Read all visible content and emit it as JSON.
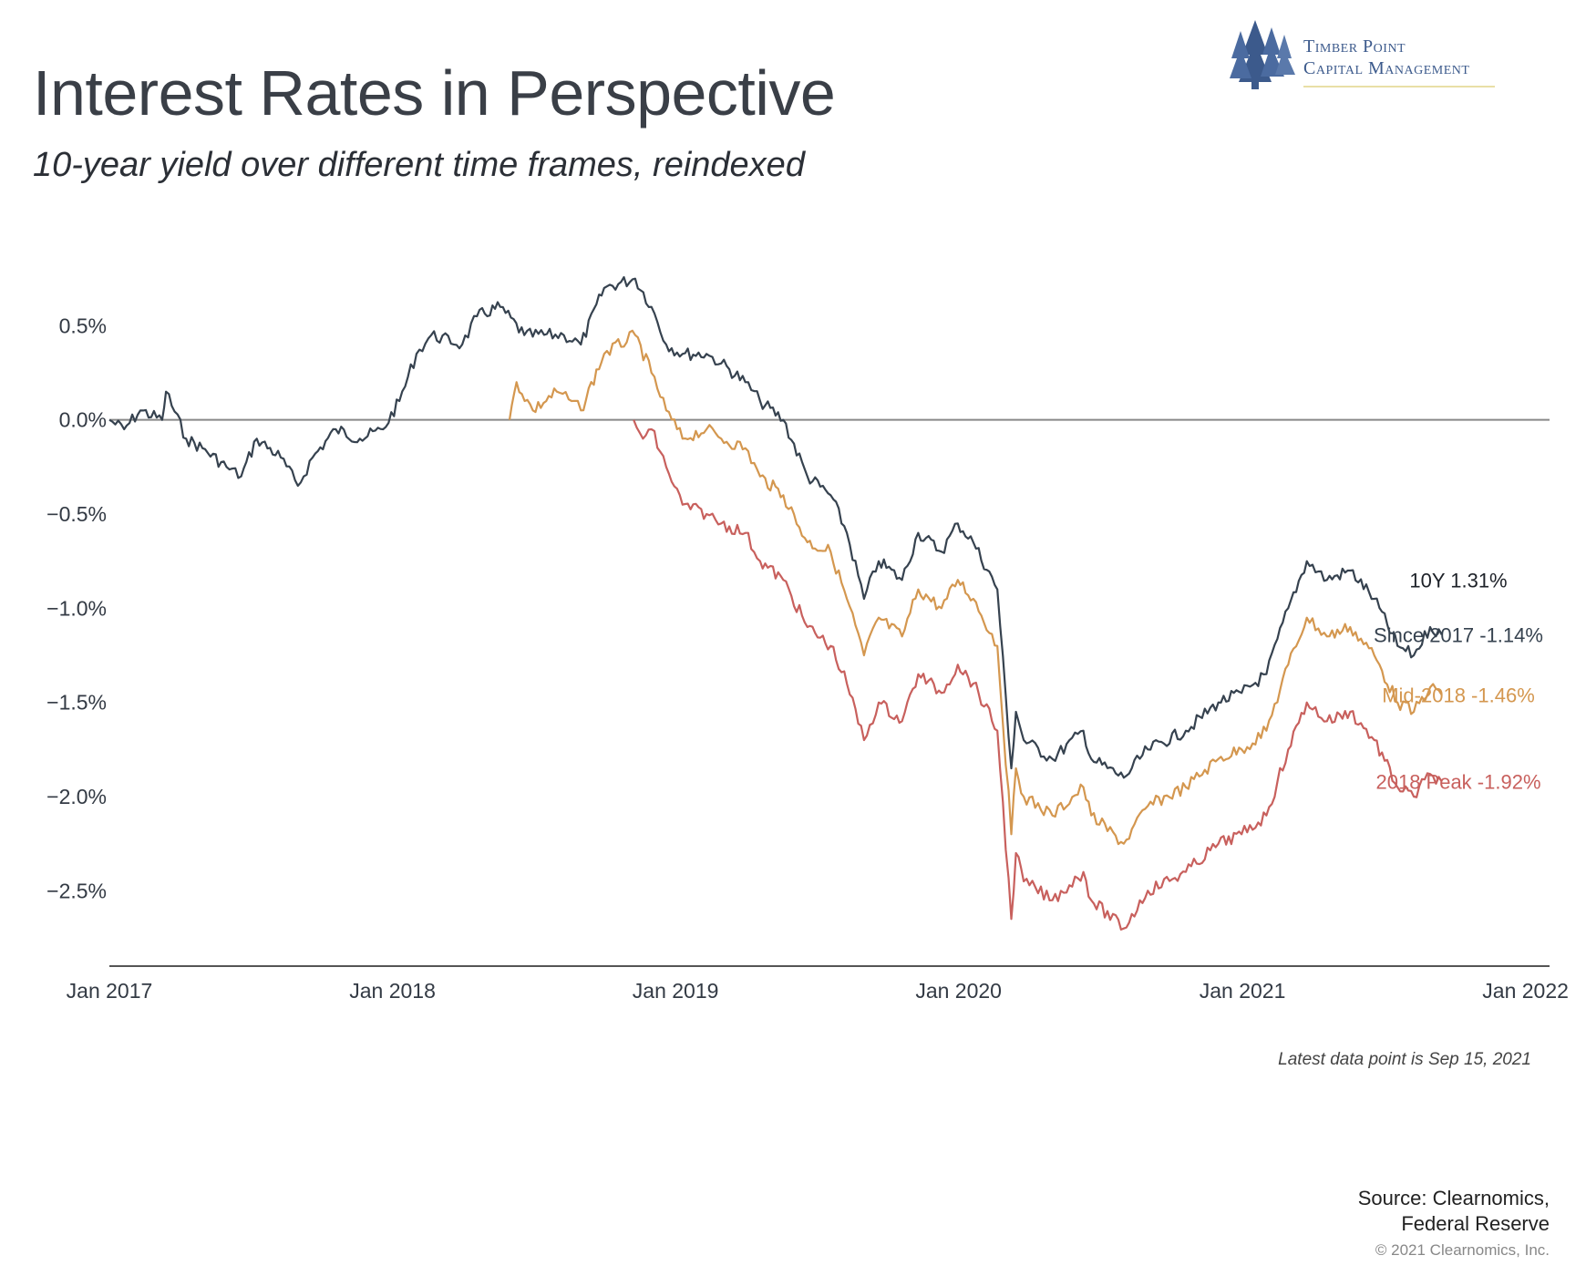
{
  "title": "Interest Rates in Perspective",
  "subtitle": "10-year yield over different time frames, reindexed",
  "logo": {
    "line1": "Timber Point",
    "line2": "Capital Management",
    "icon": "pine-trees-icon",
    "color": "#3c5a8c"
  },
  "note": "Latest data point is Sep 15, 2021",
  "source_line1": "Source: Clearnomics,",
  "source_line2": "Federal Reserve",
  "copyright": "© 2021 Clearnomics, Inc.",
  "chart_data": {
    "type": "line",
    "title": "Interest Rates in Perspective",
    "xlabel": "",
    "ylabel": "",
    "x_range": [
      "2017-01-01",
      "2022-02-01"
    ],
    "ylim": [
      -2.9,
      0.85
    ],
    "x_ticks": [
      "Jan 2017",
      "Jan 2018",
      "Jan 2019",
      "Jan 2020",
      "Jan 2021",
      "Jan 2022"
    ],
    "y_ticks": [
      "0.5%",
      "0.0%",
      "−0.5%",
      "−1.0%",
      "−1.5%",
      "−2.0%",
      "−2.5%"
    ],
    "y_tick_values": [
      0.5,
      0.0,
      -0.5,
      -1.0,
      -1.5,
      -2.0,
      -2.5
    ],
    "zero_line": true,
    "grid": false,
    "header_label": "10Y 1.31%",
    "series": [
      {
        "name": "Since 2017",
        "end_label": "Since 2017 -1.14%",
        "color": "#36424f",
        "points": [
          [
            "2017-01-01",
            0.0
          ],
          [
            "2017-01-20",
            -0.05
          ],
          [
            "2017-02-10",
            0.05
          ],
          [
            "2017-03-10",
            0.0
          ],
          [
            "2017-03-15",
            0.15
          ],
          [
            "2017-04-10",
            -0.1
          ],
          [
            "2017-05-01",
            -0.15
          ],
          [
            "2017-06-01",
            -0.25
          ],
          [
            "2017-06-20",
            -0.3
          ],
          [
            "2017-07-10",
            -0.1
          ],
          [
            "2017-08-10",
            -0.2
          ],
          [
            "2017-09-01",
            -0.35
          ],
          [
            "2017-09-20",
            -0.2
          ],
          [
            "2017-10-20",
            -0.05
          ],
          [
            "2017-11-20",
            -0.1
          ],
          [
            "2017-12-20",
            -0.05
          ],
          [
            "2018-01-10",
            0.1
          ],
          [
            "2018-02-01",
            0.35
          ],
          [
            "2018-02-20",
            0.45
          ],
          [
            "2018-04-01",
            0.4
          ],
          [
            "2018-04-20",
            0.55
          ],
          [
            "2018-05-20",
            0.6
          ],
          [
            "2018-06-20",
            0.45
          ],
          [
            "2018-08-10",
            0.45
          ],
          [
            "2018-09-01",
            0.4
          ],
          [
            "2018-10-01",
            0.7
          ],
          [
            "2018-11-10",
            0.75
          ],
          [
            "2018-12-01",
            0.6
          ],
          [
            "2018-12-20",
            0.4
          ],
          [
            "2019-01-10",
            0.35
          ],
          [
            "2019-02-10",
            0.35
          ],
          [
            "2019-03-01",
            0.3
          ],
          [
            "2019-04-01",
            0.2
          ],
          [
            "2019-04-20",
            0.1
          ],
          [
            "2019-05-20",
            0.0
          ],
          [
            "2019-06-20",
            -0.3
          ],
          [
            "2019-07-20",
            -0.4
          ],
          [
            "2019-08-10",
            -0.6
          ],
          [
            "2019-09-01",
            -0.95
          ],
          [
            "2019-09-20",
            -0.75
          ],
          [
            "2019-10-20",
            -0.85
          ],
          [
            "2019-11-10",
            -0.6
          ],
          [
            "2019-12-10",
            -0.7
          ],
          [
            "2019-12-31",
            -0.55
          ],
          [
            "2020-01-20",
            -0.65
          ],
          [
            "2020-02-20",
            -0.9
          ],
          [
            "2020-03-09",
            -1.85
          ],
          [
            "2020-03-15",
            -1.55
          ],
          [
            "2020-03-25",
            -1.7
          ],
          [
            "2020-05-01",
            -1.8
          ],
          [
            "2020-06-10",
            -1.65
          ],
          [
            "2020-06-20",
            -1.8
          ],
          [
            "2020-08-01",
            -1.9
          ],
          [
            "2020-09-01",
            -1.75
          ],
          [
            "2020-10-20",
            -1.65
          ],
          [
            "2020-12-01",
            -1.5
          ],
          [
            "2020-12-31",
            -1.45
          ],
          [
            "2021-02-01",
            -1.35
          ],
          [
            "2021-03-01",
            -1.0
          ],
          [
            "2021-03-25",
            -0.75
          ],
          [
            "2021-04-20",
            -0.85
          ],
          [
            "2021-05-20",
            -0.8
          ],
          [
            "2021-06-20",
            -0.95
          ],
          [
            "2021-07-20",
            -1.2
          ],
          [
            "2021-08-10",
            -1.25
          ],
          [
            "2021-08-31",
            -1.1
          ],
          [
            "2021-09-15",
            -1.14
          ]
        ]
      },
      {
        "name": "Mid-2018",
        "end_label": "Mid-2018 -1.46%",
        "color": "#d4974f",
        "points": [
          [
            "2018-06-01",
            0.0
          ],
          [
            "2018-06-10",
            0.2
          ],
          [
            "2018-07-01",
            0.05
          ],
          [
            "2018-08-01",
            0.15
          ],
          [
            "2018-08-20",
            0.1
          ],
          [
            "2018-09-01",
            0.05
          ],
          [
            "2018-10-01",
            0.35
          ],
          [
            "2018-11-10",
            0.45
          ],
          [
            "2018-12-01",
            0.25
          ],
          [
            "2018-12-20",
            0.05
          ],
          [
            "2019-01-10",
            -0.1
          ],
          [
            "2019-02-10",
            -0.05
          ],
          [
            "2019-03-01",
            -0.1
          ],
          [
            "2019-04-01",
            -0.15
          ],
          [
            "2019-04-20",
            -0.3
          ],
          [
            "2019-05-20",
            -0.4
          ],
          [
            "2019-06-20",
            -0.65
          ],
          [
            "2019-07-20",
            -0.7
          ],
          [
            "2019-08-10",
            -0.95
          ],
          [
            "2019-09-01",
            -1.25
          ],
          [
            "2019-09-20",
            -1.05
          ],
          [
            "2019-10-20",
            -1.15
          ],
          [
            "2019-11-10",
            -0.9
          ],
          [
            "2019-12-10",
            -1.0
          ],
          [
            "2019-12-31",
            -0.85
          ],
          [
            "2020-01-20",
            -0.95
          ],
          [
            "2020-02-20",
            -1.2
          ],
          [
            "2020-03-09",
            -2.2
          ],
          [
            "2020-03-15",
            -1.85
          ],
          [
            "2020-03-25",
            -2.0
          ],
          [
            "2020-05-01",
            -2.1
          ],
          [
            "2020-06-10",
            -1.95
          ],
          [
            "2020-06-20",
            -2.1
          ],
          [
            "2020-08-01",
            -2.25
          ],
          [
            "2020-09-01",
            -2.05
          ],
          [
            "2020-10-20",
            -1.95
          ],
          [
            "2020-12-01",
            -1.8
          ],
          [
            "2020-12-31",
            -1.75
          ],
          [
            "2021-02-01",
            -1.65
          ],
          [
            "2021-03-01",
            -1.3
          ],
          [
            "2021-03-25",
            -1.05
          ],
          [
            "2021-04-20",
            -1.15
          ],
          [
            "2021-05-20",
            -1.1
          ],
          [
            "2021-06-20",
            -1.25
          ],
          [
            "2021-07-20",
            -1.5
          ],
          [
            "2021-08-10",
            -1.55
          ],
          [
            "2021-08-31",
            -1.42
          ],
          [
            "2021-09-15",
            -1.46
          ]
        ]
      },
      {
        "name": "2018 Peak",
        "end_label": "2018 Peak -1.92%",
        "color": "#c8605d",
        "points": [
          [
            "2018-11-08",
            0.0
          ],
          [
            "2018-11-20",
            -0.1
          ],
          [
            "2018-12-01",
            -0.05
          ],
          [
            "2018-12-20",
            -0.25
          ],
          [
            "2019-01-10",
            -0.45
          ],
          [
            "2019-02-10",
            -0.5
          ],
          [
            "2019-03-01",
            -0.55
          ],
          [
            "2019-04-01",
            -0.6
          ],
          [
            "2019-04-20",
            -0.75
          ],
          [
            "2019-05-20",
            -0.85
          ],
          [
            "2019-06-20",
            -1.1
          ],
          [
            "2019-07-20",
            -1.2
          ],
          [
            "2019-08-10",
            -1.4
          ],
          [
            "2019-09-01",
            -1.7
          ],
          [
            "2019-09-20",
            -1.5
          ],
          [
            "2019-10-20",
            -1.6
          ],
          [
            "2019-11-10",
            -1.35
          ],
          [
            "2019-12-10",
            -1.45
          ],
          [
            "2019-12-31",
            -1.3
          ],
          [
            "2020-01-20",
            -1.4
          ],
          [
            "2020-02-20",
            -1.65
          ],
          [
            "2020-03-09",
            -2.65
          ],
          [
            "2020-03-15",
            -2.3
          ],
          [
            "2020-03-25",
            -2.45
          ],
          [
            "2020-05-01",
            -2.55
          ],
          [
            "2020-06-10",
            -2.4
          ],
          [
            "2020-06-20",
            -2.55
          ],
          [
            "2020-08-01",
            -2.7
          ],
          [
            "2020-09-01",
            -2.5
          ],
          [
            "2020-10-20",
            -2.4
          ],
          [
            "2020-12-01",
            -2.25
          ],
          [
            "2020-12-31",
            -2.2
          ],
          [
            "2021-02-01",
            -2.1
          ],
          [
            "2021-03-01",
            -1.75
          ],
          [
            "2021-03-25",
            -1.5
          ],
          [
            "2021-04-20",
            -1.6
          ],
          [
            "2021-05-20",
            -1.55
          ],
          [
            "2021-06-20",
            -1.7
          ],
          [
            "2021-07-20",
            -1.95
          ],
          [
            "2021-08-10",
            -2.0
          ],
          [
            "2021-08-31",
            -1.88
          ],
          [
            "2021-09-15",
            -1.92
          ]
        ]
      }
    ]
  }
}
